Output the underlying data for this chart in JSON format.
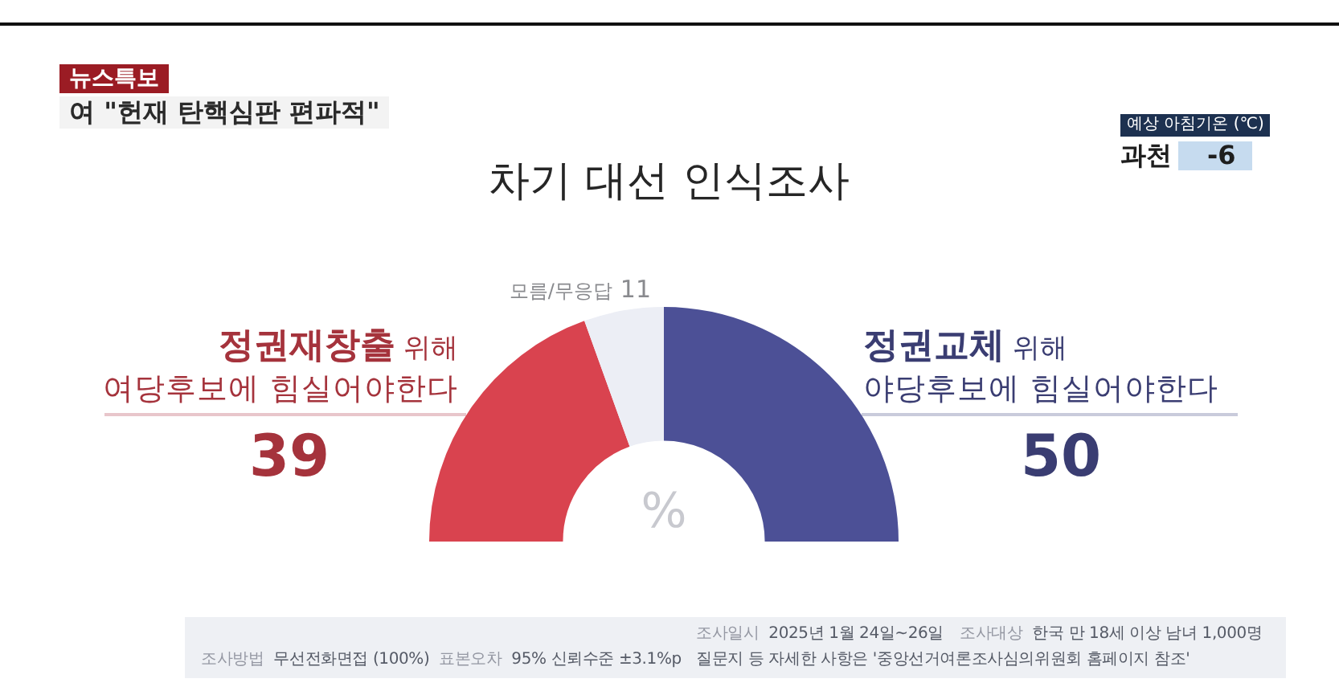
{
  "chart_data": {
    "type": "donut",
    "title": "차기 대선 인식조사",
    "categories": [
      "정권재창출 위해 여당후보에 힘실어야한다",
      "모름/무응답",
      "정권교체 위해 야당후보에 힘실어야한다"
    ],
    "values": [
      39,
      11,
      50
    ],
    "colors": [
      "#d9434f",
      "#eceef5",
      "#4c5096"
    ],
    "data_labels": true,
    "annotations": [
      "뉴스특보",
      "여 \"헌재 탄핵심판 편파적\"",
      "예상 아침기온 (℃)",
      "과천",
      "-6",
      "%",
      "조사일시 2025년 1월 24일~26일",
      "조사대상 한국 만 18세 이상 남녀 1,000명",
      "조사방법 무선전화면접 (100%)",
      "표본오차 95% 신뢰수준 ±3.1%p",
      "질문지 등 자세한 사항은 '중앙선거여론조사심의위원회 홈페이지 참조'"
    ]
  }
}
